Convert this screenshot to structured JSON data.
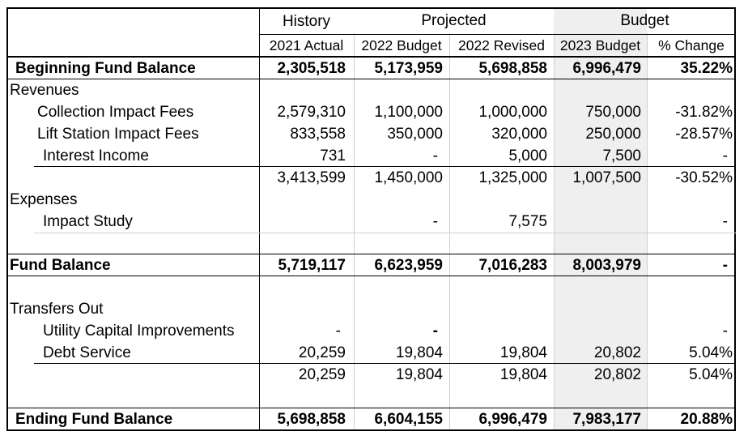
{
  "header": {
    "groups": [
      "History",
      "Projected",
      "Budget"
    ],
    "columns": [
      "2021 Actual",
      "2022 Budget",
      "2022 Revised",
      "2023 Budget",
      "% Change"
    ]
  },
  "rows": {
    "beginning": {
      "label": "Beginning Fund Balance",
      "values": [
        "2,305,518",
        "5,173,959",
        "5,698,858",
        "6,996,479",
        "35.22%"
      ]
    },
    "revenues": {
      "label": "Revenues"
    },
    "collection": {
      "label": "Collection Impact Fees",
      "values": [
        "2,579,310",
        "1,100,000",
        "1,000,000",
        "750,000",
        "-31.82%"
      ]
    },
    "lift": {
      "label": "Lift Station Impact Fees",
      "values": [
        "833,558",
        "350,000",
        "320,000",
        "250,000",
        "-28.57%"
      ]
    },
    "interest": {
      "label": "Interest Income",
      "values": [
        "731",
        "-",
        "5,000",
        "7,500",
        "-"
      ]
    },
    "rev_total": {
      "values": [
        "3,413,599",
        "1,450,000",
        "1,325,000",
        "1,007,500",
        "-30.52%"
      ]
    },
    "expenses": {
      "label": "Expenses"
    },
    "impact_study": {
      "label": "Impact Study",
      "values": [
        "",
        "-",
        "7,575",
        "",
        "-"
      ]
    },
    "fund_balance": {
      "label": "Fund Balance",
      "values": [
        "5,719,117",
        "6,623,959",
        "7,016,283",
        "8,003,979",
        "-"
      ]
    },
    "transfers": {
      "label": "Transfers Out"
    },
    "utility": {
      "label": "Utility Capital Improvements",
      "values": [
        "-",
        "-",
        "",
        "",
        "-"
      ]
    },
    "debt": {
      "label": "Debt Service",
      "values": [
        "20,259",
        "19,804",
        "19,804",
        "20,802",
        "5.04%"
      ]
    },
    "trans_total": {
      "values": [
        "20,259",
        "19,804",
        "19,804",
        "20,802",
        "5.04%"
      ]
    },
    "ending": {
      "label": "Ending Fund Balance",
      "values": [
        "5,698,858",
        "6,604,155",
        "6,996,479",
        "7,983,177",
        "20.88%"
      ]
    }
  }
}
